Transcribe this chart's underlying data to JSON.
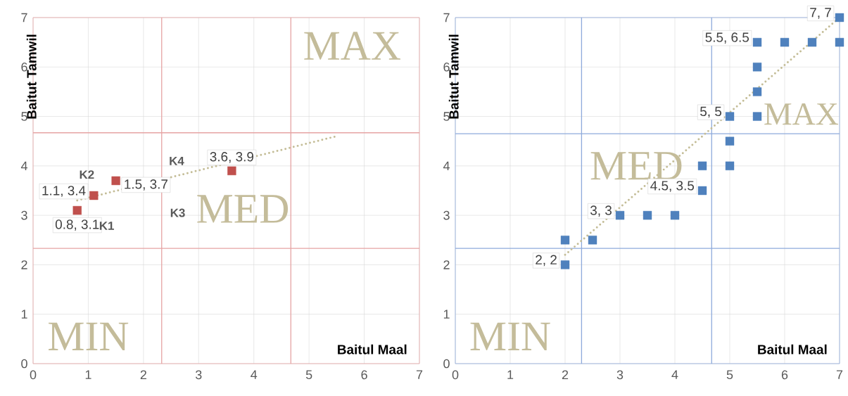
{
  "chart_data": [
    {
      "type": "scatter",
      "xlabel": "Baitul Maal",
      "ylabel": "Baitut Tamwil",
      "xlim": [
        0,
        7
      ],
      "ylim": [
        0,
        7
      ],
      "xticks": [
        0,
        1,
        2,
        3,
        4,
        5,
        6,
        7
      ],
      "yticks": [
        0,
        1,
        2,
        3,
        4,
        5,
        6,
        7
      ],
      "grid": true,
      "series": [
        {
          "color": "#c0504d",
          "marker": "square",
          "x": [
            0.8,
            1.1,
            1.5,
            3.6
          ],
          "values": [
            3.1,
            3.4,
            3.7,
            3.9
          ],
          "value_labels": [
            "0.8, 3.1",
            "1.1, 3.4",
            "1.5, 3.7",
            "3.6, 3.9"
          ]
        },
        {
          "type": "line",
          "color": "#c4bd97",
          "marker": "none",
          "line_style": "dotted",
          "x": [
            0.8,
            5.5
          ],
          "values": [
            3.3,
            4.6
          ]
        }
      ],
      "ref_lines": [
        {
          "axis": "x",
          "value": 2.33,
          "color": "#e6a3a3"
        },
        {
          "axis": "x",
          "value": 4.67,
          "color": "#e6a3a3"
        },
        {
          "axis": "y",
          "value": 2.33,
          "color": "#e6a3a3"
        },
        {
          "axis": "y",
          "value": 4.67,
          "color": "#e6a3a3"
        }
      ],
      "annotations": [
        "MAX",
        "MED",
        "MIN",
        {
          "text": "K1",
          "x": 0.8,
          "y": 3.1
        },
        {
          "text": "K2",
          "x": 1.1,
          "y": 3.4
        },
        "K3",
        "K4"
      ]
    },
    {
      "type": "scatter",
      "xlabel": "Baitul Maal",
      "ylabel": "Baitut Tamwil",
      "xlim": [
        0,
        7
      ],
      "ylim": [
        0,
        7
      ],
      "xticks": [
        0,
        1,
        2,
        3,
        4,
        5,
        6,
        7
      ],
      "yticks": [
        0,
        1,
        2,
        3,
        4,
        5,
        6,
        7
      ],
      "grid": true,
      "series": [
        {
          "color": "#4f81bd",
          "marker": "square",
          "x": [
            2,
            2,
            2.5,
            3,
            3.5,
            4,
            4.5,
            4.5,
            5,
            5,
            5,
            5.5,
            5.5,
            5.5,
            5.5,
            6,
            6.5,
            7,
            7
          ],
          "values": [
            2,
            2.5,
            2.5,
            3,
            3,
            3,
            3.5,
            4,
            4,
            4.5,
            5,
            5,
            5.5,
            6,
            6.5,
            6.5,
            6.5,
            6.5,
            7
          ],
          "value_labels": [
            "2, 2",
            null,
            null,
            "3, 3",
            null,
            null,
            "4.5, 3.5",
            null,
            null,
            null,
            "5, 5",
            null,
            null,
            null,
            "5.5, 6.5",
            null,
            null,
            null,
            "7, 7"
          ]
        },
        {
          "type": "line",
          "color": "#c4bd97",
          "marker": "none",
          "line_style": "dotted",
          "x": [
            2,
            7
          ],
          "values": [
            2.2,
            7
          ]
        }
      ],
      "ref_lines": [
        {
          "axis": "x",
          "value": 2.3,
          "color": "#8eaadb"
        },
        {
          "axis": "x",
          "value": 4.67,
          "color": "#8eaadb"
        },
        {
          "axis": "y",
          "value": 2.33,
          "color": "#8eaadb"
        },
        {
          "axis": "y",
          "value": 4.65,
          "color": "#8eaadb"
        }
      ],
      "annotations": [
        "MAX",
        "MED",
        "MIN"
      ]
    }
  ]
}
